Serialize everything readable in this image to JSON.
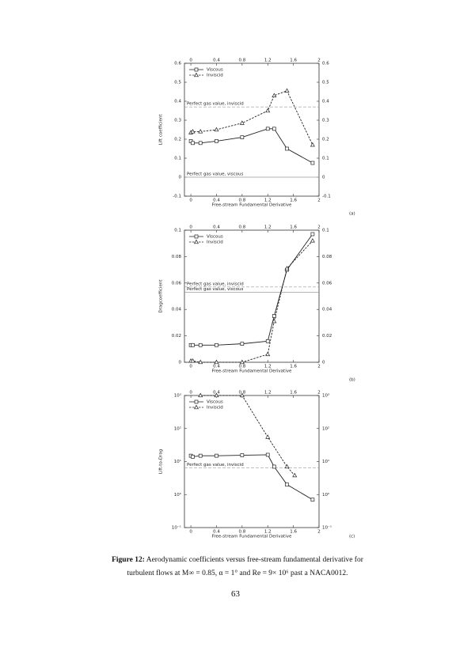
{
  "chart_data": [
    {
      "type": "line",
      "panel_label": "(a)",
      "xlabel": "Free-stream Fundamental Derivative",
      "ylabel": "Lift coefficient",
      "xlim": [
        -0.1,
        2
      ],
      "xticks": [
        0,
        0.4,
        0.8,
        1.2,
        1.6,
        2
      ],
      "ylim": [
        -0.1,
        0.6
      ],
      "yticks": [
        -0.1,
        0,
        0.1,
        0.2,
        0.3,
        0.4,
        0.5,
        0.6
      ],
      "log_y": false,
      "legend": "upper left",
      "series": [
        {
          "name": "Viscous",
          "color": "#222222",
          "marker": "square",
          "dashed": false,
          "x": [
            0,
            0.03,
            0.15,
            0.4,
            0.8,
            1.2,
            1.3,
            1.5,
            1.9
          ],
          "values": [
            0.19,
            0.18,
            0.18,
            0.19,
            0.21,
            0.255,
            0.255,
            0.15,
            0.075
          ]
        },
        {
          "name": "Inviscid",
          "color": "#222222",
          "marker": "triangle",
          "dashed": true,
          "x": [
            0,
            0.03,
            0.15,
            0.4,
            0.8,
            1.2,
            1.3,
            1.5,
            1.9
          ],
          "values": [
            0.235,
            0.24,
            0.24,
            0.25,
            0.285,
            0.35,
            0.43,
            0.455,
            0.17
          ]
        }
      ],
      "annotations": [
        {
          "text": "Perfect gas value, inviscid",
          "value": 0.37,
          "dashed": true,
          "color": "#999999"
        },
        {
          "text": "Perfect gas value, viscous",
          "value": 0,
          "dashed": false,
          "color": "#999999"
        }
      ]
    },
    {
      "type": "line",
      "panel_label": "(b)",
      "xlabel": "Free-stream Fundamental Derivative",
      "ylabel": "Dragcoefficient",
      "xlim": [
        -0.1,
        2
      ],
      "xticks": [
        0,
        0.4,
        0.8,
        1.2,
        1.6,
        2
      ],
      "ylim": [
        0,
        0.1
      ],
      "yticks": [
        0,
        0.02,
        0.04,
        0.06,
        0.08,
        0.1
      ],
      "log_y": false,
      "legend": "upper left",
      "series": [
        {
          "name": "Viscous",
          "color": "#222222",
          "marker": "square",
          "dashed": false,
          "x": [
            0,
            0.03,
            0.15,
            0.4,
            0.8,
            1.2,
            1.3,
            1.5,
            1.9
          ],
          "values": [
            0.013,
            0.013,
            0.013,
            0.013,
            0.014,
            0.016,
            0.035,
            0.07,
            0.097
          ]
        },
        {
          "name": "Inviscid",
          "color": "#222222",
          "marker": "triangle",
          "dashed": true,
          "x": [
            0,
            0.03,
            0.15,
            0.4,
            0.8,
            1.2,
            1.3,
            1.5,
            1.9
          ],
          "values": [
            0.001,
            0.001,
            0,
            0,
            0,
            0.006,
            0.031,
            0.071,
            0.092
          ]
        }
      ],
      "annotations": [
        {
          "text": "Perfect gas value, inviscid",
          "value": 0.057,
          "dashed": true,
          "color": "#999999"
        },
        {
          "text": "Perfect gas value, viscous",
          "value": 0.053,
          "dashed": false,
          "color": "#999999"
        }
      ]
    },
    {
      "type": "line",
      "panel_label": "(c)",
      "xlabel": "Free-stream Fundamental Derivative",
      "ylabel": "Lift-to-Drag",
      "xlim": [
        -0.1,
        2
      ],
      "xticks": [
        0,
        0.4,
        0.8,
        1.2,
        1.6,
        2
      ],
      "ylim": [
        0.1,
        1000
      ],
      "yticks": [
        {
          "value": 0.1,
          "label": "10⁻¹"
        },
        {
          "value": 1,
          "label": "10⁰"
        },
        {
          "value": 10,
          "label": "10¹"
        },
        {
          "value": 100,
          "label": "10²"
        },
        {
          "value": 1000,
          "label": "10³"
        }
      ],
      "log_y": true,
      "legend": "upper left",
      "series": [
        {
          "name": "Viscous",
          "color": "#222222",
          "marker": "square",
          "dashed": false,
          "x": [
            0,
            0.03,
            0.15,
            0.4,
            0.8,
            1.2,
            1.3,
            1.5,
            1.9
          ],
          "values": [
            15,
            14,
            15,
            15,
            15.5,
            16,
            7,
            2,
            0.7
          ]
        },
        {
          "name": "Inviscid",
          "color": "#222222",
          "marker": "triangle",
          "dashed": true,
          "x": [
            0.15,
            0.4,
            0.8,
            1.2,
            1.5,
            1.62
          ],
          "values": [
            1000,
            1000,
            1000,
            55,
            7,
            3.8
          ]
        }
      ],
      "annotations": [
        {
          "text": "Perfect gas value, inviscid",
          "value": 6.5,
          "dashed": true,
          "color": "#999999"
        }
      ]
    }
  ],
  "caption": {
    "label": "Figure 12:",
    "text": "Aerodynamic coefficients versus free-stream fundamental derivative for turbulent flows at M∞ = 0.85, α = 1° and Re = 9× 10⁶ past a NACA0012."
  },
  "page_number": "63"
}
